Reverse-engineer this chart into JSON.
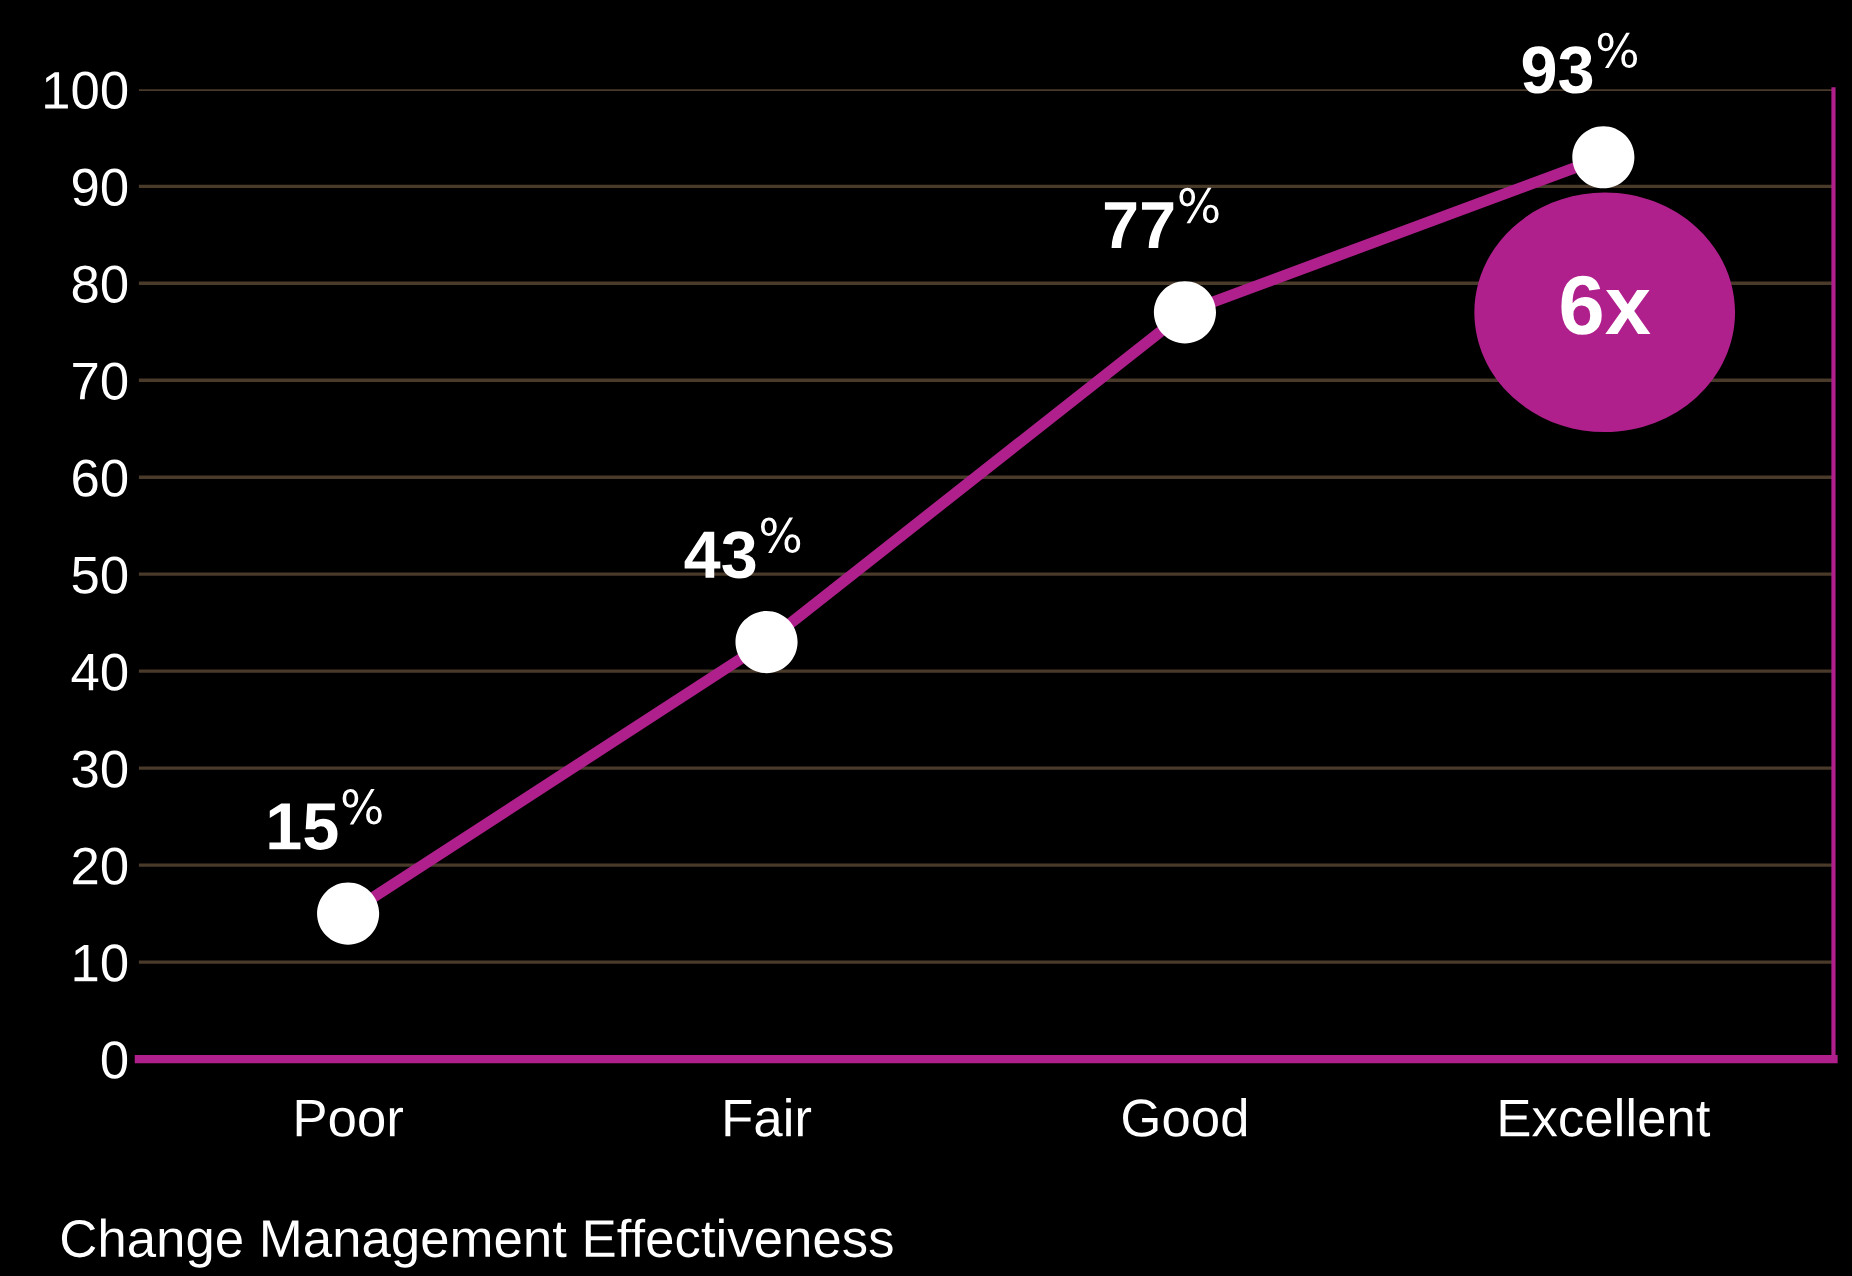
{
  "chart_data": {
    "type": "line",
    "xlabel": "Change Management Effectiveness",
    "categories": [
      "Poor",
      "Fair",
      "Good",
      "Excellent"
    ],
    "series": [
      {
        "color": "#b0208c",
        "values": [
          15,
          43,
          77,
          93
        ],
        "value_labels": [
          "15$^{%}$",
          "43$^{%}$",
          "77$^{%}$",
          "93$^{%}$"
        ]
      }
    ],
    "ylim": [
      0,
      100
    ],
    "yticks": [
      0,
      10,
      20,
      30,
      40,
      50,
      60,
      70,
      80,
      90,
      100
    ],
    "grid": "y",
    "marker": "circle",
    "line_style": "solid",
    "annotations": [
      "6x"
    ]
  }
}
